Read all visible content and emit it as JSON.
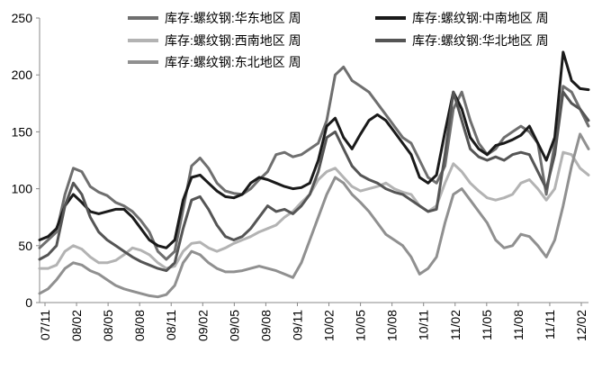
{
  "chart_data": {
    "type": "line",
    "title": "",
    "xlabel": "",
    "ylabel": "",
    "ylim": [
      0,
      250
    ],
    "yticks": [
      0,
      50,
      100,
      150,
      200,
      250
    ],
    "x_ticks": [
      "07/11",
      "08/02",
      "08/05",
      "08/08",
      "08/11",
      "09/02",
      "09/05",
      "09/08",
      "09/11",
      "10/02",
      "10/05",
      "10/08",
      "10/11",
      "11/02",
      "11/05",
      "11/08",
      "11/11",
      "12/02"
    ],
    "x_range": [
      0,
      65
    ],
    "legend_placement": "top",
    "grid": false,
    "series": [
      {
        "name": "库存:螺纹钢:华东地区 周",
        "color": "#6f6f6f",
        "width": 3,
        "points": [
          [
            0,
            48
          ],
          [
            1,
            55
          ],
          [
            2,
            62
          ],
          [
            3,
            95
          ],
          [
            4,
            118
          ],
          [
            5,
            115
          ],
          [
            6,
            102
          ],
          [
            7,
            97
          ],
          [
            8,
            94
          ],
          [
            9,
            88
          ],
          [
            10,
            85
          ],
          [
            11,
            80
          ],
          [
            12,
            72
          ],
          [
            13,
            62
          ],
          [
            14,
            45
          ],
          [
            15,
            38
          ],
          [
            16,
            45
          ],
          [
            17,
            82
          ],
          [
            18,
            120
          ],
          [
            19,
            127
          ],
          [
            20,
            118
          ],
          [
            21,
            105
          ],
          [
            22,
            98
          ],
          [
            23,
            96
          ],
          [
            24,
            95
          ],
          [
            25,
            100
          ],
          [
            26,
            108
          ],
          [
            27,
            115
          ],
          [
            28,
            130
          ],
          [
            29,
            132
          ],
          [
            30,
            128
          ],
          [
            31,
            130
          ],
          [
            32,
            135
          ],
          [
            33,
            140
          ],
          [
            34,
            160
          ],
          [
            35,
            200
          ],
          [
            36,
            207
          ],
          [
            37,
            195
          ],
          [
            38,
            190
          ],
          [
            39,
            185
          ],
          [
            40,
            175
          ],
          [
            41,
            165
          ],
          [
            42,
            155
          ],
          [
            43,
            145
          ],
          [
            44,
            140
          ],
          [
            45,
            125
          ],
          [
            46,
            110
          ],
          [
            47,
            105
          ],
          [
            48,
            120
          ],
          [
            49,
            170
          ],
          [
            50,
            185
          ],
          [
            51,
            160
          ],
          [
            52,
            140
          ],
          [
            53,
            130
          ],
          [
            54,
            135
          ],
          [
            55,
            145
          ],
          [
            56,
            150
          ],
          [
            57,
            155
          ],
          [
            58,
            150
          ],
          [
            59,
            140
          ],
          [
            60,
            95
          ],
          [
            61,
            140
          ],
          [
            62,
            190
          ],
          [
            63,
            185
          ],
          [
            64,
            170
          ],
          [
            65,
            155
          ]
        ]
      },
      {
        "name": "库存:螺纹钢:中南地区 周",
        "color": "#1a1a1a",
        "width": 3,
        "points": [
          [
            0,
            55
          ],
          [
            1,
            58
          ],
          [
            2,
            65
          ],
          [
            3,
            85
          ],
          [
            4,
            95
          ],
          [
            5,
            88
          ],
          [
            6,
            80
          ],
          [
            7,
            78
          ],
          [
            8,
            80
          ],
          [
            9,
            82
          ],
          [
            10,
            82
          ],
          [
            11,
            75
          ],
          [
            12,
            65
          ],
          [
            13,
            55
          ],
          [
            14,
            50
          ],
          [
            15,
            48
          ],
          [
            16,
            55
          ],
          [
            17,
            90
          ],
          [
            18,
            110
          ],
          [
            19,
            112
          ],
          [
            20,
            105
          ],
          [
            21,
            98
          ],
          [
            22,
            93
          ],
          [
            23,
            92
          ],
          [
            24,
            95
          ],
          [
            25,
            105
          ],
          [
            26,
            110
          ],
          [
            27,
            108
          ],
          [
            28,
            105
          ],
          [
            29,
            102
          ],
          [
            30,
            100
          ],
          [
            31,
            101
          ],
          [
            32,
            105
          ],
          [
            33,
            125
          ],
          [
            34,
            155
          ],
          [
            35,
            162
          ],
          [
            36,
            145
          ],
          [
            37,
            135
          ],
          [
            38,
            148
          ],
          [
            39,
            160
          ],
          [
            40,
            165
          ],
          [
            41,
            160
          ],
          [
            42,
            150
          ],
          [
            43,
            140
          ],
          [
            44,
            130
          ],
          [
            45,
            110
          ],
          [
            46,
            105
          ],
          [
            47,
            112
          ],
          [
            48,
            150
          ],
          [
            49,
            185
          ],
          [
            50,
            170
          ],
          [
            51,
            145
          ],
          [
            52,
            135
          ],
          [
            53,
            130
          ],
          [
            54,
            138
          ],
          [
            55,
            140
          ],
          [
            56,
            143
          ],
          [
            57,
            147
          ],
          [
            58,
            155
          ],
          [
            59,
            140
          ],
          [
            60,
            125
          ],
          [
            61,
            145
          ],
          [
            62,
            220
          ],
          [
            63,
            195
          ],
          [
            64,
            188
          ],
          [
            65,
            187
          ]
        ]
      },
      {
        "name": "库存:螺纹钢:西南地区 周",
        "color": "#b3b3b3",
        "width": 3,
        "points": [
          [
            0,
            30
          ],
          [
            1,
            30
          ],
          [
            2,
            33
          ],
          [
            3,
            45
          ],
          [
            4,
            50
          ],
          [
            5,
            47
          ],
          [
            6,
            40
          ],
          [
            7,
            35
          ],
          [
            8,
            35
          ],
          [
            9,
            37
          ],
          [
            10,
            42
          ],
          [
            11,
            48
          ],
          [
            12,
            46
          ],
          [
            13,
            42
          ],
          [
            14,
            35
          ],
          [
            15,
            30
          ],
          [
            16,
            32
          ],
          [
            17,
            45
          ],
          [
            18,
            52
          ],
          [
            19,
            53
          ],
          [
            20,
            48
          ],
          [
            21,
            45
          ],
          [
            22,
            48
          ],
          [
            23,
            52
          ],
          [
            24,
            55
          ],
          [
            25,
            58
          ],
          [
            26,
            62
          ],
          [
            27,
            65
          ],
          [
            28,
            68
          ],
          [
            29,
            75
          ],
          [
            30,
            80
          ],
          [
            31,
            88
          ],
          [
            32,
            95
          ],
          [
            33,
            108
          ],
          [
            34,
            115
          ],
          [
            35,
            118
          ],
          [
            36,
            110
          ],
          [
            37,
            102
          ],
          [
            38,
            98
          ],
          [
            39,
            100
          ],
          [
            40,
            102
          ],
          [
            41,
            105
          ],
          [
            42,
            100
          ],
          [
            43,
            97
          ],
          [
            44,
            95
          ],
          [
            45,
            85
          ],
          [
            46,
            80
          ],
          [
            47,
            85
          ],
          [
            48,
            105
          ],
          [
            49,
            122
          ],
          [
            50,
            115
          ],
          [
            51,
            105
          ],
          [
            52,
            98
          ],
          [
            53,
            92
          ],
          [
            54,
            90
          ],
          [
            55,
            92
          ],
          [
            56,
            95
          ],
          [
            57,
            105
          ],
          [
            58,
            108
          ],
          [
            59,
            100
          ],
          [
            60,
            90
          ],
          [
            61,
            100
          ],
          [
            62,
            132
          ],
          [
            63,
            130
          ],
          [
            64,
            118
          ],
          [
            65,
            112
          ]
        ]
      },
      {
        "name": "库存:螺纹钢:华北地区 周",
        "color": "#555555",
        "width": 3,
        "points": [
          [
            0,
            38
          ],
          [
            1,
            42
          ],
          [
            2,
            50
          ],
          [
            3,
            85
          ],
          [
            4,
            105
          ],
          [
            5,
            95
          ],
          [
            6,
            75
          ],
          [
            7,
            62
          ],
          [
            8,
            55
          ],
          [
            9,
            50
          ],
          [
            10,
            45
          ],
          [
            11,
            40
          ],
          [
            12,
            36
          ],
          [
            13,
            33
          ],
          [
            14,
            30
          ],
          [
            15,
            28
          ],
          [
            16,
            35
          ],
          [
            17,
            65
          ],
          [
            18,
            90
          ],
          [
            19,
            93
          ],
          [
            20,
            82
          ],
          [
            21,
            68
          ],
          [
            22,
            58
          ],
          [
            23,
            55
          ],
          [
            24,
            58
          ],
          [
            25,
            65
          ],
          [
            26,
            75
          ],
          [
            27,
            85
          ],
          [
            28,
            80
          ],
          [
            29,
            82
          ],
          [
            30,
            78
          ],
          [
            31,
            85
          ],
          [
            32,
            95
          ],
          [
            33,
            115
          ],
          [
            34,
            145
          ],
          [
            35,
            150
          ],
          [
            36,
            135
          ],
          [
            37,
            120
          ],
          [
            38,
            112
          ],
          [
            39,
            108
          ],
          [
            40,
            105
          ],
          [
            41,
            100
          ],
          [
            42,
            97
          ],
          [
            43,
            95
          ],
          [
            44,
            90
          ],
          [
            45,
            85
          ],
          [
            46,
            80
          ],
          [
            47,
            82
          ],
          [
            48,
            130
          ],
          [
            49,
            185
          ],
          [
            50,
            160
          ],
          [
            51,
            135
          ],
          [
            52,
            128
          ],
          [
            53,
            125
          ],
          [
            54,
            128
          ],
          [
            55,
            125
          ],
          [
            56,
            130
          ],
          [
            57,
            132
          ],
          [
            58,
            130
          ],
          [
            59,
            115
          ],
          [
            60,
            100
          ],
          [
            61,
            130
          ],
          [
            62,
            185
          ],
          [
            63,
            175
          ],
          [
            64,
            170
          ],
          [
            65,
            160
          ]
        ]
      },
      {
        "name": "库存:螺纹钢:东北地区 周",
        "color": "#909090",
        "width": 3,
        "points": [
          [
            0,
            8
          ],
          [
            1,
            12
          ],
          [
            2,
            20
          ],
          [
            3,
            30
          ],
          [
            4,
            35
          ],
          [
            5,
            33
          ],
          [
            6,
            28
          ],
          [
            7,
            25
          ],
          [
            8,
            20
          ],
          [
            9,
            15
          ],
          [
            10,
            12
          ],
          [
            11,
            10
          ],
          [
            12,
            8
          ],
          [
            13,
            6
          ],
          [
            14,
            5
          ],
          [
            15,
            7
          ],
          [
            16,
            15
          ],
          [
            17,
            35
          ],
          [
            18,
            45
          ],
          [
            19,
            42
          ],
          [
            20,
            35
          ],
          [
            21,
            30
          ],
          [
            22,
            27
          ],
          [
            23,
            27
          ],
          [
            24,
            28
          ],
          [
            25,
            30
          ],
          [
            26,
            32
          ],
          [
            27,
            30
          ],
          [
            28,
            28
          ],
          [
            29,
            25
          ],
          [
            30,
            22
          ],
          [
            31,
            35
          ],
          [
            32,
            55
          ],
          [
            33,
            75
          ],
          [
            34,
            95
          ],
          [
            35,
            110
          ],
          [
            36,
            105
          ],
          [
            37,
            95
          ],
          [
            38,
            88
          ],
          [
            39,
            80
          ],
          [
            40,
            70
          ],
          [
            41,
            60
          ],
          [
            42,
            55
          ],
          [
            43,
            50
          ],
          [
            44,
            40
          ],
          [
            45,
            25
          ],
          [
            46,
            30
          ],
          [
            47,
            40
          ],
          [
            48,
            70
          ],
          [
            49,
            95
          ],
          [
            50,
            100
          ],
          [
            51,
            90
          ],
          [
            52,
            80
          ],
          [
            53,
            70
          ],
          [
            54,
            55
          ],
          [
            55,
            48
          ],
          [
            56,
            50
          ],
          [
            57,
            60
          ],
          [
            58,
            58
          ],
          [
            59,
            50
          ],
          [
            60,
            40
          ],
          [
            61,
            55
          ],
          [
            62,
            85
          ],
          [
            63,
            120
          ],
          [
            64,
            148
          ],
          [
            65,
            135
          ]
        ]
      }
    ]
  }
}
